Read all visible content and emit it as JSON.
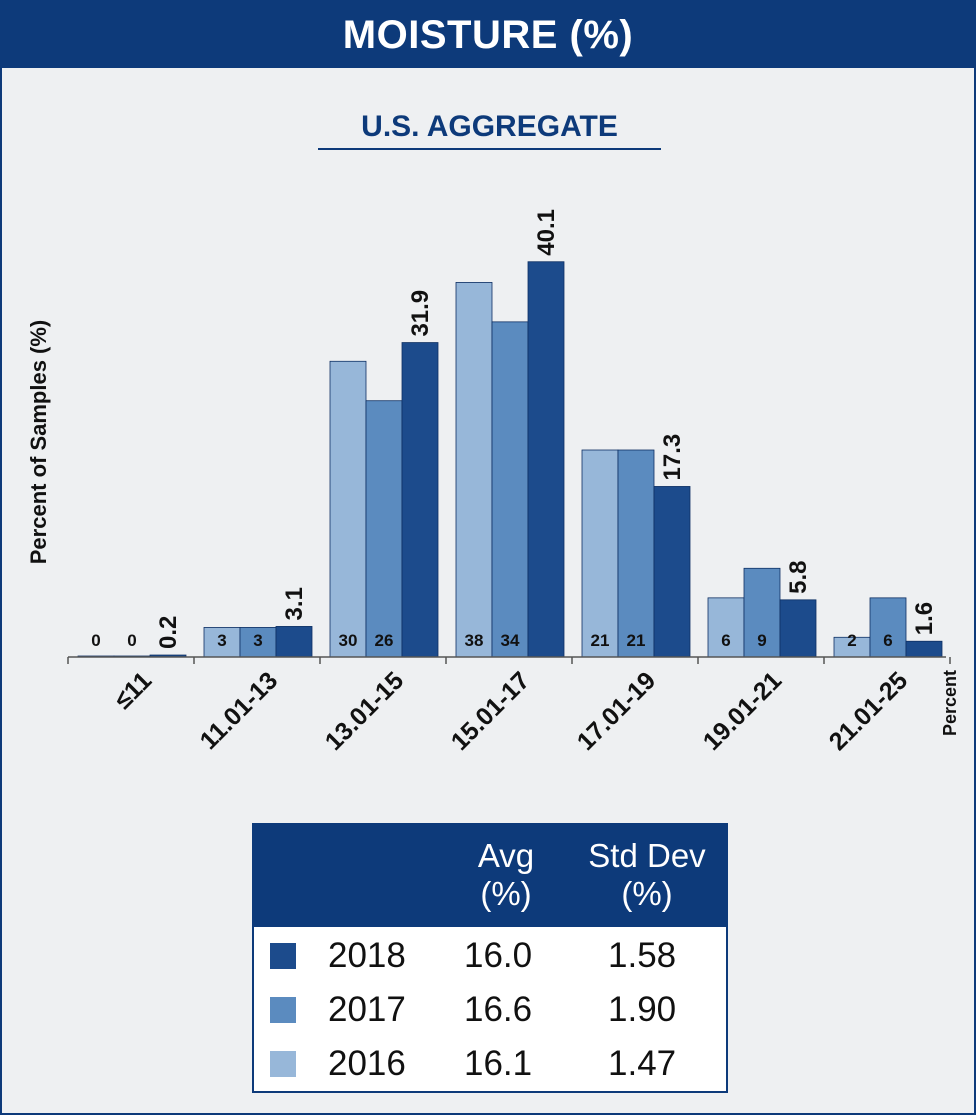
{
  "header": {
    "title": "MOISTURE (%)"
  },
  "chart_data": {
    "type": "bar",
    "title": "U.S. AGGREGATE",
    "ylabel": "Percent of Samples (%)",
    "xlabel": "Percent",
    "categories": [
      "≤11",
      "11.01-13",
      "13.01-15",
      "15.01-17",
      "17.01-19",
      "19.01-21",
      "21.01-25"
    ],
    "series": [
      {
        "name": "2016",
        "color": "#97b7d9",
        "values": [
          0,
          3,
          30,
          38,
          21,
          6,
          2
        ],
        "labels": [
          "0",
          "3",
          "30",
          "38",
          "21",
          "6",
          "2"
        ]
      },
      {
        "name": "2017",
        "color": "#5b8bbf",
        "values": [
          0,
          3,
          26,
          34,
          21,
          9,
          6
        ],
        "labels": [
          "0",
          "3",
          "26",
          "34",
          "21",
          "9",
          "6"
        ]
      },
      {
        "name": "2018",
        "color": "#1c4b8c",
        "values": [
          0.2,
          3.1,
          31.9,
          40.1,
          17.3,
          5.8,
          1.6
        ],
        "labels": [
          "0.2",
          "3.1",
          "31.9",
          "40.1",
          "17.3",
          "5.8",
          "1.6"
        ]
      }
    ],
    "ylim": [
      0,
      42
    ],
    "grid": false
  },
  "stats_table": {
    "headers": {
      "avg_line1": "Avg",
      "avg_line2": "(%)",
      "std_line1": "Std Dev",
      "std_line2": "(%)"
    },
    "rows": [
      {
        "year": "2018",
        "avg": "16.0",
        "std": "1.58",
        "color": "#1c4b8c"
      },
      {
        "year": "2017",
        "avg": "16.6",
        "std": "1.90",
        "color": "#5b8bbf"
      },
      {
        "year": "2016",
        "avg": "16.1",
        "std": "1.47",
        "color": "#97b7d9"
      }
    ]
  }
}
